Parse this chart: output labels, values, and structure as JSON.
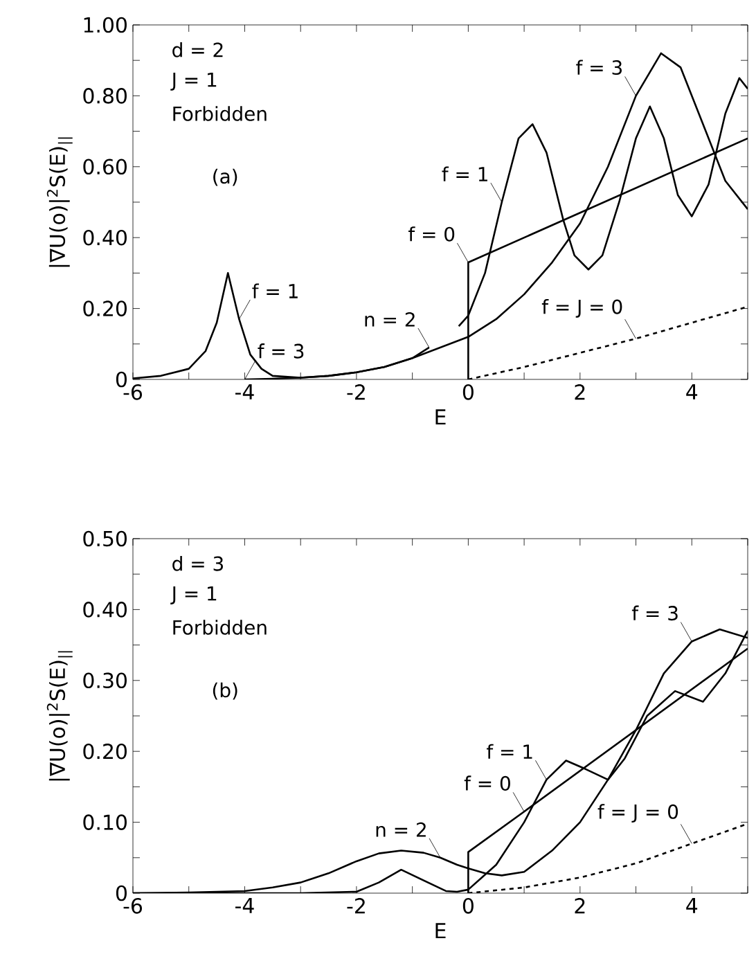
{
  "chart_data": [
    {
      "type": "line",
      "xlabel": "E",
      "ylabel": "|∇U(o)|$^{2}$S(E)$_{||}$",
      "xlim": [
        -6,
        5
      ],
      "ylim": [
        0,
        1.0
      ],
      "xticks": [
        -6,
        {
          "value": -5,
          "label": null
        },
        -4,
        {
          "value": -3,
          "label": null
        },
        -2,
        {
          "value": -1,
          "label": null
        },
        0,
        {
          "value": 1,
          "label": null
        },
        2,
        {
          "value": 3,
          "label": null
        },
        4,
        {
          "value": 5,
          "label": null
        }
      ],
      "yticks": [
        0,
        {
          "value": 0.1,
          "label": null
        },
        {
          "value": 0.2,
          "label": "0.20"
        },
        {
          "value": 0.3,
          "label": null
        },
        {
          "value": 0.4,
          "label": "0.40"
        },
        {
          "value": 0.5,
          "label": null
        },
        {
          "value": 0.6,
          "label": "0.60"
        },
        {
          "value": 0.7,
          "label": null
        },
        {
          "value": 0.8,
          "label": "0.80"
        },
        {
          "value": 0.9,
          "label": null
        },
        {
          "value": 1.0,
          "label": "1.00"
        }
      ],
      "grid": false,
      "series": [
        {
          "color": "#000000",
          "line_style": "solid",
          "x": [
            -6,
            -5.5,
            -5,
            -4.7,
            -4.5,
            -4.3,
            -4.1,
            -3.9,
            -3.7,
            -3.5,
            -3,
            -2.5,
            -2,
            -1.5,
            -1,
            -0.7,
            -0.4,
            -0.17,
            0,
            0.3,
            0.6,
            0.9,
            1.15,
            1.4,
            1.7,
            1.9,
            2.15,
            2.4,
            2.7,
            3.0,
            3.25,
            3.5,
            3.75,
            4.0,
            4.3,
            4.6,
            4.85,
            5
          ],
          "values": [
            0.003,
            0.01,
            0.03,
            0.08,
            0.16,
            0.3,
            0.17,
            0.07,
            0.03,
            0.01,
            0.005,
            0.01,
            0.02,
            0.035,
            0.06,
            0.09,
            null,
            0.15,
            0.18,
            0.3,
            0.5,
            0.68,
            0.72,
            0.64,
            0.45,
            0.35,
            0.31,
            0.35,
            0.5,
            0.68,
            0.77,
            0.68,
            0.52,
            0.46,
            0.55,
            0.75,
            0.85,
            0.82
          ]
        },
        {
          "color": "#000000",
          "line_style": "solid",
          "x": [
            -4,
            -3.5,
            -3,
            -2.5,
            -2,
            -1.5,
            -1,
            -0.5,
            0,
            0.5,
            1,
            1.5,
            2,
            2.5,
            3,
            3.45,
            3.8,
            4.2,
            4.6,
            5
          ],
          "values": [
            0,
            0.002,
            0.005,
            0.01,
            0.02,
            0.035,
            0.06,
            0.09,
            0.12,
            0.17,
            0.24,
            0.33,
            0.44,
            0.6,
            0.8,
            0.92,
            0.88,
            0.72,
            0.56,
            0.48
          ]
        },
        {
          "color": "#000000",
          "line_style": "solid",
          "x": [
            0,
            0,
            5
          ],
          "values": [
            0,
            0.33,
            0.68
          ]
        },
        {
          "color": "#000000",
          "line_style": "dashed",
          "x": [
            0,
            1,
            2,
            3,
            4,
            5
          ],
          "values": [
            0,
            0.035,
            0.075,
            0.115,
            0.16,
            0.205
          ]
        }
      ],
      "annotations": [
        "d = 2",
        "J = 1",
        "Forbidden",
        "(a)",
        {
          "text": "f = 1",
          "x": -4.1,
          "y": 0.17
        },
        {
          "text": "f = 3",
          "x": -4,
          "y": 0
        },
        {
          "text": "n = 2",
          "x": -0.7,
          "y": 0.09
        },
        {
          "text": "f = 0",
          "x": 0,
          "y": 0.33
        },
        {
          "text": "f = 1",
          "x": 0.6,
          "y": 0.5
        },
        {
          "text": "f = 3",
          "x": 3.0,
          "y": 0.8
        },
        {
          "text": "f = J = 0",
          "x": 3,
          "y": 0.115
        }
      ]
    },
    {
      "type": "line",
      "xlabel": "E",
      "ylabel": "|∇U(o)|$^{2}$S(E)$_{||}$",
      "xlim": [
        -6,
        5
      ],
      "ylim": [
        0,
        0.5
      ],
      "xticks": [
        -6,
        {
          "value": -5,
          "label": null
        },
        -4,
        {
          "value": -3,
          "label": null
        },
        -2,
        {
          "value": -1,
          "label": null
        },
        0,
        {
          "value": 1,
          "label": null
        },
        2,
        {
          "value": 3,
          "label": null
        },
        4,
        {
          "value": 5,
          "label": null
        }
      ],
      "yticks": [
        0,
        {
          "value": 0.05,
          "label": null
        },
        {
          "value": 0.1,
          "label": "0.10"
        },
        {
          "value": 0.15,
          "label": null
        },
        {
          "value": 0.2,
          "label": "0.20"
        },
        {
          "value": 0.25,
          "label": null
        },
        {
          "value": 0.3,
          "label": "0.30"
        },
        {
          "value": 0.35,
          "label": null
        },
        {
          "value": 0.4,
          "label": "0.40"
        },
        {
          "value": 0.45,
          "label": null
        },
        {
          "value": 0.5,
          "label": "0.50"
        }
      ],
      "grid": false,
      "series": [
        {
          "color": "#000000",
          "line_style": "solid",
          "x": [
            -6,
            -5,
            -4,
            -3.5,
            -3,
            -2.5,
            -2,
            -1.6,
            -1.2,
            -0.8,
            -0.5,
            -0.2,
            0,
            0.3,
            0.6,
            1,
            1.5,
            2,
            2.5,
            3,
            3.5,
            4,
            4.5,
            5
          ],
          "values": [
            0,
            0.001,
            0.003,
            0.008,
            0.015,
            0.028,
            0.045,
            0.056,
            0.06,
            0.057,
            0.05,
            0.04,
            0.035,
            0.028,
            0.025,
            0.03,
            0.06,
            0.1,
            0.16,
            0.23,
            0.31,
            0.355,
            0.372,
            0.36
          ]
        },
        {
          "color": "#000000",
          "line_style": "solid",
          "x": [
            -6,
            -3,
            -2,
            -1.6,
            -1.2,
            -0.8,
            -0.4,
            -0.2,
            0,
            0.5,
            1,
            1.4,
            1.75,
            2.1,
            2.5,
            2.8,
            3.2,
            3.7,
            4.2,
            4.6,
            5
          ],
          "values": [
            0,
            0,
            0.002,
            0.015,
            0.033,
            0.018,
            0.003,
            0.002,
            0.005,
            0.04,
            0.1,
            0.16,
            0.187,
            0.175,
            0.16,
            0.19,
            0.25,
            0.285,
            0.27,
            0.31,
            0.37
          ]
        },
        {
          "color": "#000000",
          "line_style": "solid",
          "x": [
            0,
            0,
            1,
            5
          ],
          "values": [
            0,
            0.058,
            0.115,
            0.345
          ]
        },
        {
          "color": "#000000",
          "line_style": "dashed",
          "x": [
            0,
            1,
            2,
            3,
            4,
            5
          ],
          "values": [
            0,
            0.008,
            0.022,
            0.042,
            0.07,
            0.098
          ]
        }
      ],
      "annotations": [
        "d = 3",
        "J = 1",
        "Forbidden",
        "(b)",
        {
          "text": "n = 2",
          "x": -0.5,
          "y": 0.05
        },
        {
          "text": "f = 0",
          "x": 1,
          "y": 0.115
        },
        {
          "text": "f = 1",
          "x": 1.4,
          "y": 0.16
        },
        {
          "text": "f = 3",
          "x": 4,
          "y": 0.355
        },
        {
          "text": "f = J = 0",
          "x": 4,
          "y": 0.07
        }
      ]
    }
  ]
}
